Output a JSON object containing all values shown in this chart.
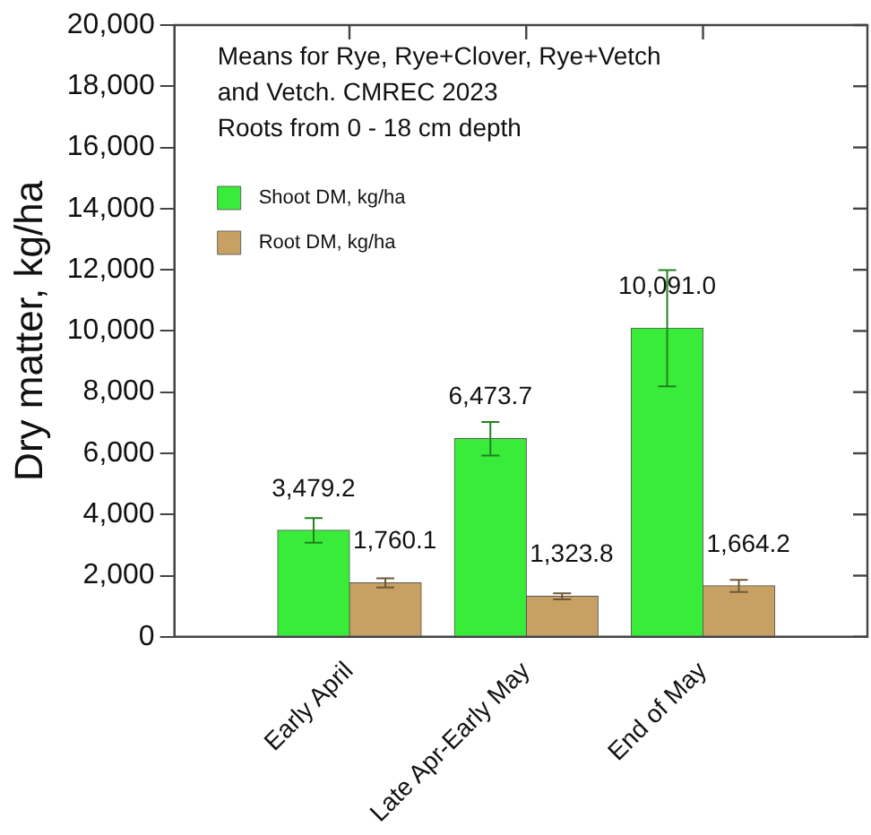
{
  "chart_data": {
    "type": "bar",
    "ylabel": "Dry matter, kg/ha",
    "annotations": [
      "Means for Rye, Rye+Clover, Rye+Vetch\nand Vetch. CMREC 2023\nRoots from 0 - 18 cm depth"
    ],
    "categories": [
      "Early April",
      "Late Apr-Early May",
      "End of May"
    ],
    "series": [
      {
        "name": "Shoot DM, kg/ha",
        "color": "#3aec3a",
        "values": [
          3479.2,
          6473.7,
          10091.0
        ],
        "errors": [
          400,
          550,
          1900
        ],
        "value_labels": [
          "3,479.2",
          "6,473.7",
          "10,091.0"
        ]
      },
      {
        "name": "Root DM, kg/ha",
        "color": "#c8a064",
        "values": [
          1760.1,
          1323.8,
          1664.2
        ],
        "errors": [
          150,
          100,
          200
        ],
        "value_labels": [
          "1,760.1",
          "1,323.8",
          "1,664.2"
        ]
      }
    ],
    "ylim": [
      0,
      20000
    ],
    "yticks": [
      {
        "value": 0,
        "label": "0"
      },
      {
        "value": 2000,
        "label": "2,000"
      },
      {
        "value": 4000,
        "label": "4,000"
      },
      {
        "value": 6000,
        "label": "6,000"
      },
      {
        "value": 8000,
        "label": "8,000"
      },
      {
        "value": 10000,
        "label": "10,000"
      },
      {
        "value": 12000,
        "label": "12,000"
      },
      {
        "value": 14000,
        "label": "14,000"
      },
      {
        "value": 16000,
        "label": "16,000"
      },
      {
        "value": 18000,
        "label": "18,000"
      },
      {
        "value": 20000,
        "label": "20,000"
      }
    ],
    "grid": false,
    "legend": "top left"
  }
}
